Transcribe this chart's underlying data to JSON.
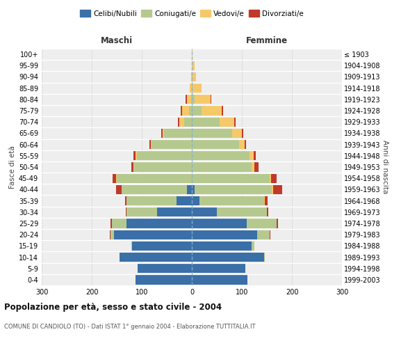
{
  "age_groups": [
    "0-4",
    "5-9",
    "10-14",
    "15-19",
    "20-24",
    "25-29",
    "30-34",
    "35-39",
    "40-44",
    "45-49",
    "50-54",
    "55-59",
    "60-64",
    "65-69",
    "70-74",
    "75-79",
    "80-84",
    "85-89",
    "90-94",
    "95-99",
    "100+"
  ],
  "birth_years": [
    "1999-2003",
    "1994-1998",
    "1989-1993",
    "1984-1988",
    "1979-1983",
    "1974-1978",
    "1969-1973",
    "1964-1968",
    "1959-1963",
    "1954-1958",
    "1949-1953",
    "1944-1948",
    "1939-1943",
    "1934-1938",
    "1929-1933",
    "1924-1928",
    "1919-1923",
    "1914-1918",
    "1909-1913",
    "1904-1908",
    "≤ 1903"
  ],
  "maschi": {
    "celibi": [
      113,
      108,
      145,
      120,
      155,
      130,
      70,
      30,
      10,
      0,
      0,
      0,
      0,
      0,
      0,
      0,
      0,
      0,
      0,
      0,
      0
    ],
    "coniugati": [
      0,
      0,
      0,
      1,
      8,
      30,
      60,
      100,
      130,
      150,
      115,
      110,
      80,
      55,
      15,
      5,
      2,
      0,
      0,
      0,
      0
    ],
    "vedovi": [
      0,
      0,
      0,
      0,
      0,
      0,
      0,
      0,
      0,
      1,
      1,
      2,
      2,
      3,
      10,
      15,
      8,
      4,
      1,
      0,
      0
    ],
    "divorziati": [
      0,
      0,
      0,
      0,
      1,
      2,
      2,
      4,
      12,
      8,
      5,
      5,
      3,
      3,
      3,
      2,
      2,
      0,
      0,
      0,
      0
    ]
  },
  "femmine": {
    "nubili": [
      111,
      107,
      145,
      120,
      130,
      110,
      50,
      15,
      5,
      0,
      0,
      0,
      0,
      0,
      0,
      0,
      0,
      0,
      0,
      0,
      0
    ],
    "coniugate": [
      0,
      0,
      1,
      5,
      25,
      60,
      100,
      130,
      155,
      155,
      120,
      115,
      95,
      80,
      55,
      20,
      5,
      2,
      0,
      0,
      0
    ],
    "vedove": [
      0,
      0,
      0,
      0,
      1,
      0,
      0,
      1,
      2,
      3,
      5,
      8,
      10,
      20,
      30,
      40,
      32,
      18,
      8,
      5,
      2
    ],
    "divorziate": [
      0,
      0,
      0,
      0,
      1,
      2,
      3,
      5,
      18,
      12,
      8,
      5,
      3,
      3,
      3,
      2,
      2,
      0,
      0,
      0,
      0
    ]
  },
  "colors": {
    "celibi": "#3a6fa8",
    "coniugati": "#b5c98e",
    "vedovi": "#f5c96a",
    "divorziati": "#c0392b"
  },
  "xlim": 300,
  "title": "Popolazione per età, sesso e stato civile - 2004",
  "subtitle": "COMUNE DI CANDIOLO (TO) - Dati ISTAT 1° gennaio 2004 - Elaborazione TUTTITALIA.IT",
  "xlabel_left": "Maschi",
  "xlabel_right": "Femmine",
  "ylabel_left": "Fasce di età",
  "ylabel_right": "Anni di nascita",
  "legend_labels": [
    "Celibi/Nubili",
    "Coniugati/e",
    "Vedovi/e",
    "Divorziati/e"
  ],
  "bg_color": "#ffffff",
  "plot_bg": "#eeeeee",
  "grid_color": "#cccccc"
}
